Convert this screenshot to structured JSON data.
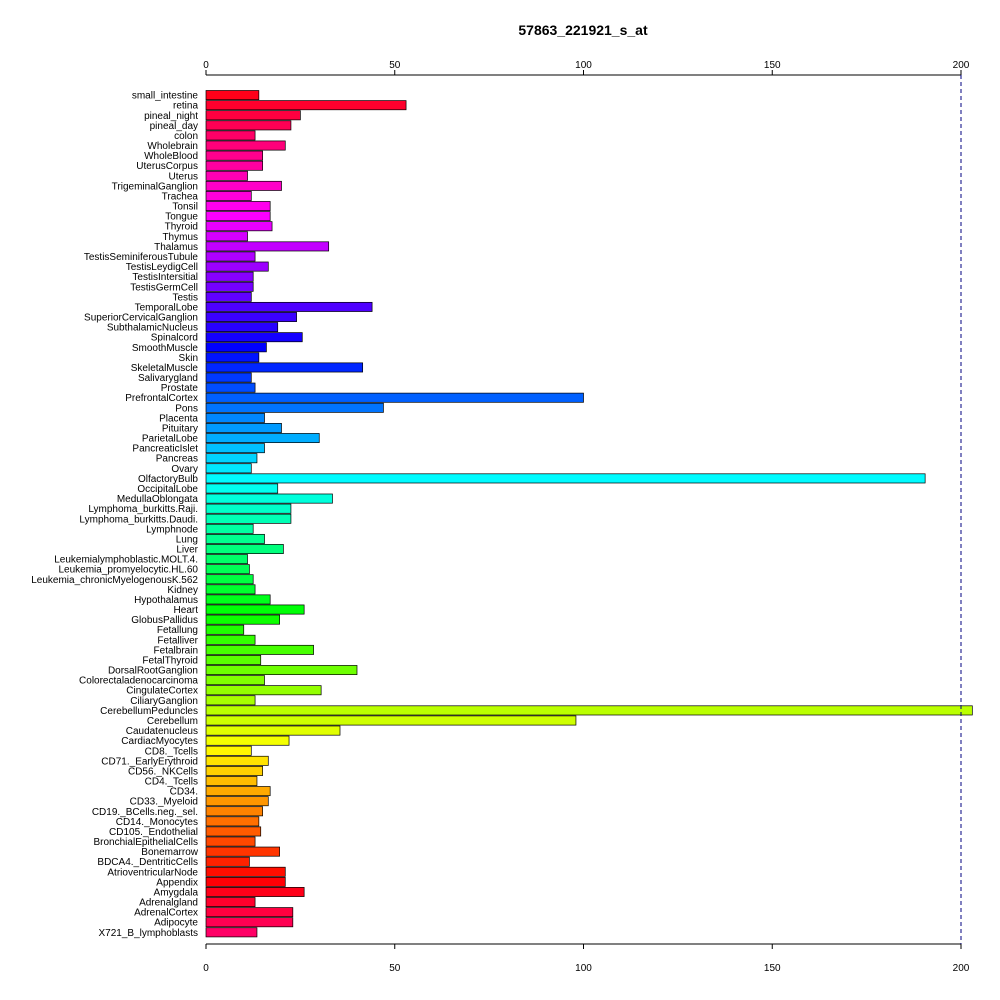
{
  "chart_data": {
    "type": "bar",
    "orientation": "horizontal",
    "title": "57863_221921_s_at",
    "xlabel": "",
    "ylabel": "",
    "xlim": [
      0,
      200
    ],
    "x_ticks": [
      0,
      50,
      100,
      150,
      200
    ],
    "reference_line": 200,
    "grid": false,
    "legend": "none",
    "categories": [
      "small_intestine",
      "retina",
      "pineal_night",
      "pineal_day",
      "colon",
      "Wholebrain",
      "WholeBlood",
      "UterusCorpus",
      "Uterus",
      "TrigeminalGanglion",
      "Trachea",
      "Tonsil",
      "Tongue",
      "Thyroid",
      "Thymus",
      "Thalamus",
      "TestisSeminiferousTubule",
      "TestisLeydigCell",
      "TestisIntersitial",
      "TestisGermCell",
      "Testis",
      "TemporalLobe",
      "SuperiorCervicalGanglion",
      "SubthalamicNucleus",
      "Spinalcord",
      "SmoothMuscle",
      "Skin",
      "SkeletalMuscle",
      "Salivarygland",
      "Prostate",
      "PrefrontalCortex",
      "Pons",
      "Placenta",
      "Pituitary",
      "ParietalLobe",
      "PancreaticIslet",
      "Pancreas",
      "Ovary",
      "OlfactoryBulb",
      "OccipitalLobe",
      "MedullaOblongata",
      "Lymphoma_burkitts.Raji.",
      "Lymphoma_burkitts.Daudi.",
      "Lymphnode",
      "Lung",
      "Liver",
      "Leukemialymphoblastic.MOLT.4.",
      "Leukemia_promyelocytic.HL.60",
      "Leukemia_chronicMyelogenousK.562",
      "Kidney",
      "Hypothalamus",
      "Heart",
      "GlobusPallidus",
      "Fetallung",
      "Fetalliver",
      "Fetalbrain",
      "FetalThyroid",
      "DorsalRootGanglion",
      "Colorectaladenocarcinoma",
      "CingulateCortex",
      "CiliaryGanglion",
      "CerebellumPeduncles",
      "Cerebellum",
      "Caudatenucleus",
      "CardiacMyocytes",
      "CD8._Tcells",
      "CD71._EarlyErythroid",
      "CD56._NKCells",
      "CD4._Tcells",
      "CD34.",
      "CD33._Myeloid",
      "CD19._BCells.neg._sel.",
      "CD14._Monocytes",
      "CD105._Endothelial",
      "BronchialEpithelialCells",
      "Bonemarrow",
      "BDCA4._DentriticCells",
      "AtrioventricularNode",
      "Appendix",
      "Amygdala",
      "Adrenalgland",
      "AdrenalCortex",
      "Adipocyte",
      "X721_B_lymphoblasts"
    ],
    "values": [
      14,
      53,
      25,
      22.5,
      13,
      21,
      15,
      15,
      11,
      20,
      12,
      17,
      17,
      17.5,
      11,
      32.5,
      13,
      16.5,
      12.5,
      12.5,
      12,
      44,
      24,
      19,
      25.5,
      16,
      14,
      41.5,
      12,
      13,
      100,
      47,
      15.5,
      20,
      30,
      15.5,
      13.5,
      12,
      190.5,
      19,
      33.5,
      22.5,
      22.5,
      12.5,
      15.5,
      20.5,
      11,
      11.5,
      12.5,
      13,
      17,
      26,
      19.5,
      10,
      13,
      28.5,
      14.5,
      40,
      15.5,
      30.5,
      13,
      203,
      98,
      35.5,
      22,
      12,
      16.5,
      15,
      13.5,
      17,
      16.5,
      15,
      14,
      14.5,
      13,
      19.5,
      11.5,
      21,
      21,
      26,
      13,
      23,
      23,
      13.5
    ]
  }
}
